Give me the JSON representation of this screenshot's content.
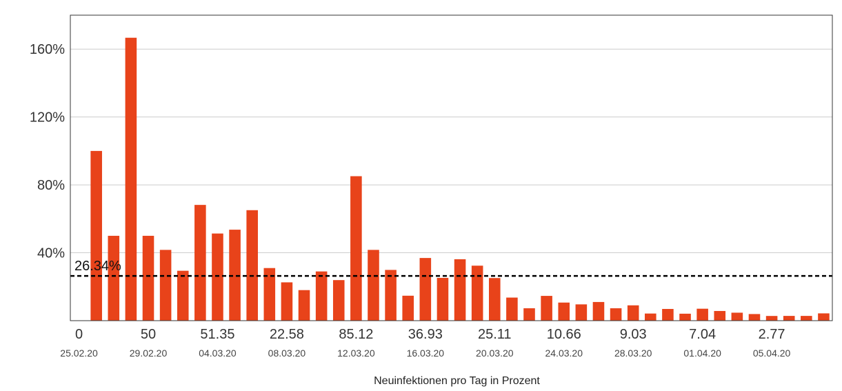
{
  "chart_data": {
    "type": "bar",
    "xlabel": "Neuinfektionen pro Tag in Prozent",
    "ylabel": "",
    "ylim": [
      0,
      180
    ],
    "yticks": [
      40,
      80,
      120,
      160
    ],
    "ytick_labels": [
      "40%",
      "80%",
      "120%",
      "160%"
    ],
    "grid": "horizontal",
    "bar_color": "#e8431a",
    "reference_line": {
      "value": 26.34,
      "label": "26.34%",
      "style": "dashed",
      "color": "#000000"
    },
    "x_tick_labels": [
      {
        "index": 0,
        "value": "0",
        "date": "25.02.20"
      },
      {
        "index": 4,
        "value": "50",
        "date": "29.02.20"
      },
      {
        "index": 8,
        "value": "51.35",
        "date": "04.03.20"
      },
      {
        "index": 12,
        "value": "22.58",
        "date": "08.03.20"
      },
      {
        "index": 16,
        "value": "85.12",
        "date": "12.03.20"
      },
      {
        "index": 20,
        "value": "36.93",
        "date": "16.03.20"
      },
      {
        "index": 24,
        "value": "25.11",
        "date": "20.03.20"
      },
      {
        "index": 28,
        "value": "10.66",
        "date": "24.03.20"
      },
      {
        "index": 32,
        "value": "9.03",
        "date": "28.03.20"
      },
      {
        "index": 36,
        "value": "7.04",
        "date": "01.04.20"
      },
      {
        "index": 40,
        "value": "2.77",
        "date": "05.04.20"
      }
    ],
    "values": [
      0,
      100,
      50,
      166.7,
      50,
      41.7,
      29.4,
      68.2,
      51.35,
      53.6,
      65.1,
      31.0,
      22.58,
      18.0,
      29.0,
      23.9,
      85.12,
      41.7,
      29.9,
      14.7,
      36.93,
      25.2,
      36.2,
      32.4,
      25.11,
      13.6,
      7.3,
      14.6,
      10.66,
      9.6,
      11.0,
      7.3,
      9.03,
      4.2,
      6.9,
      4.1,
      7.04,
      5.7,
      4.7,
      3.9,
      2.77,
      2.8,
      2.8,
      4.3
    ]
  }
}
